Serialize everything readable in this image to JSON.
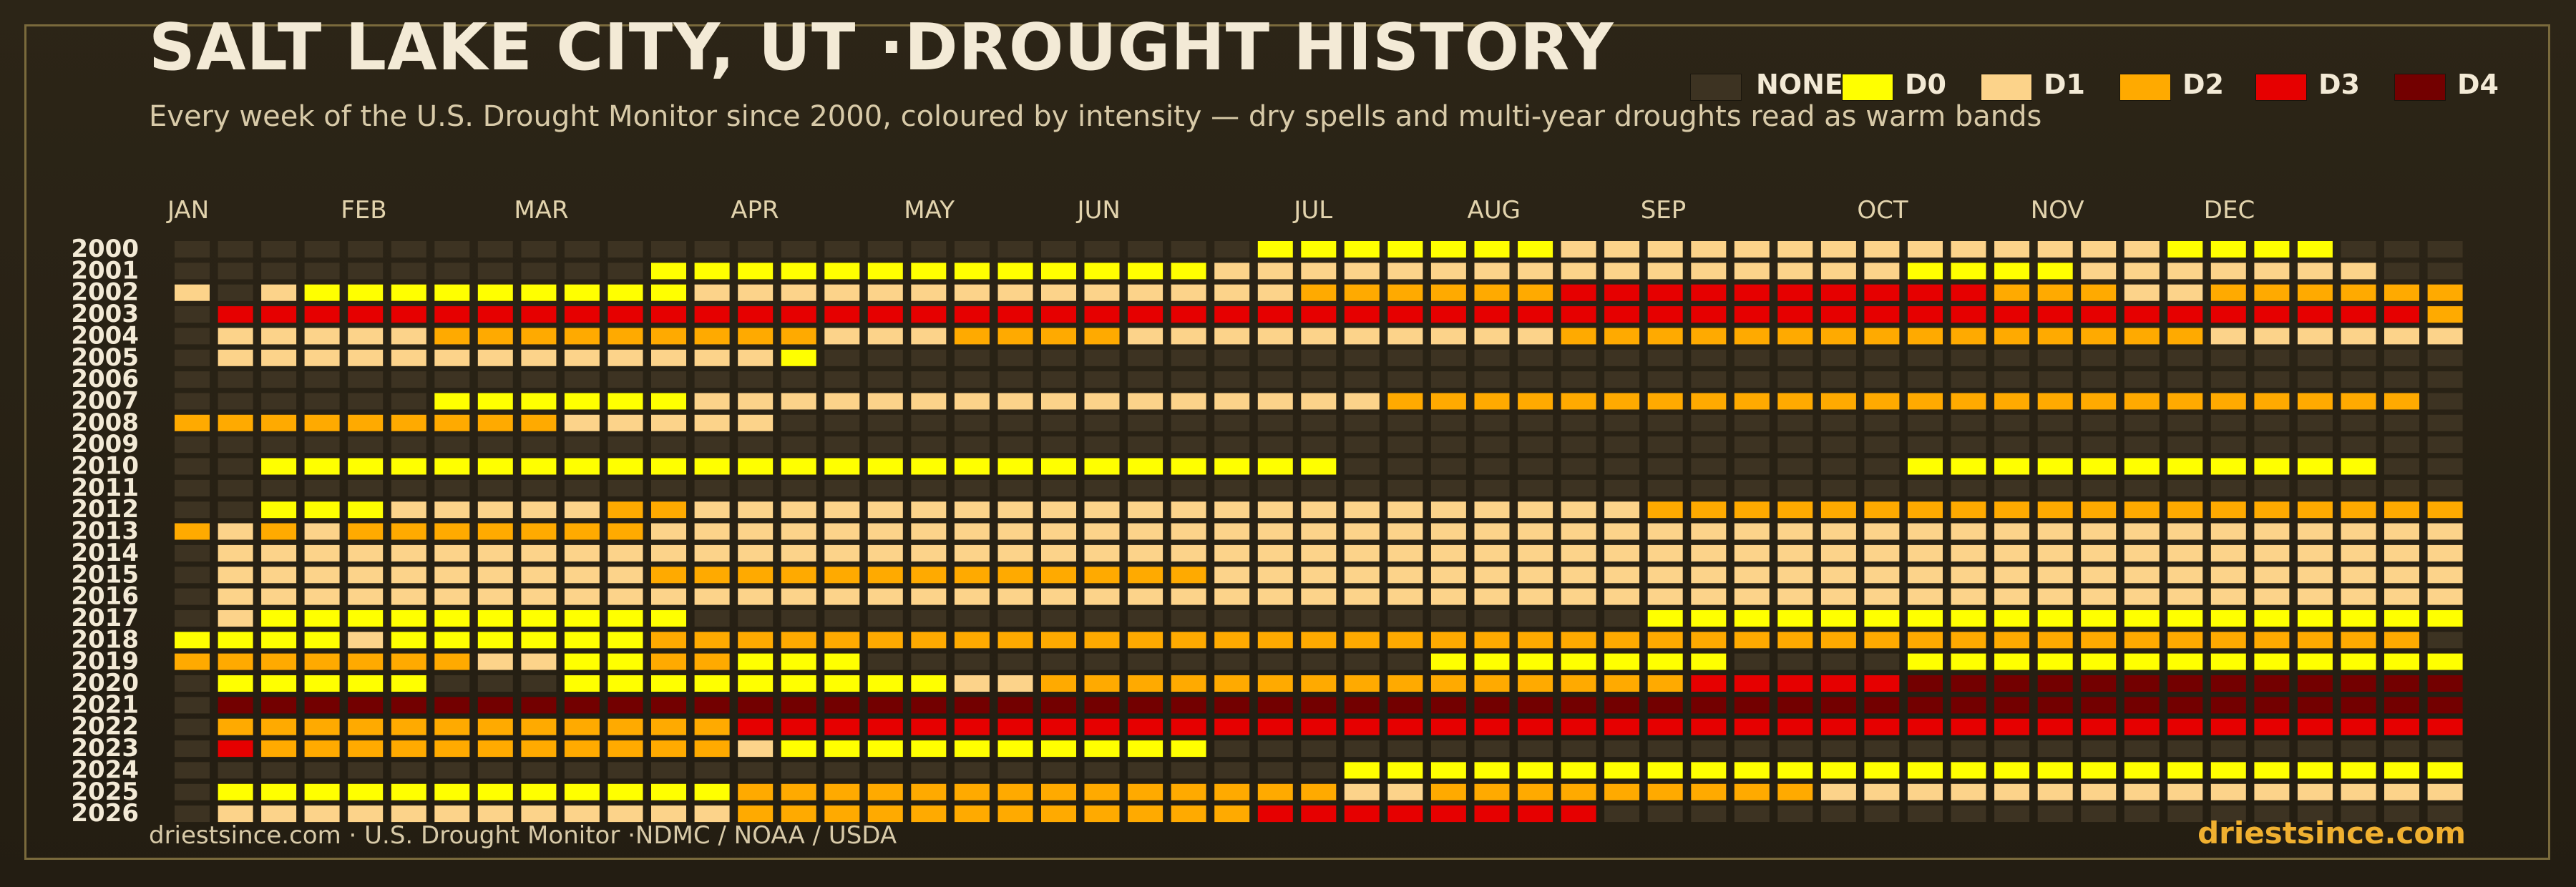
{
  "title": "SALT LAKE CITY, UT ·DROUGHT HISTORY",
  "subtitle": "Every week of the U.S. Drought Monitor since 2000, coloured by intensity — dry spells and multi-year droughts read as warm bands",
  "footer": {
    "source": "driestsince.com  · U.S. Drought Monitor ·NDMC / NOAA / USDA",
    "brand": "driestsince.com"
  },
  "legend": [
    {
      "label": "NONE",
      "color": "#3d3322"
    },
    {
      "label": "D0",
      "color": "#ffff00"
    },
    {
      "label": "D1",
      "color": "#fcd38a"
    },
    {
      "label": "D2",
      "color": "#ffaa00"
    },
    {
      "label": "D3",
      "color": "#e60000"
    },
    {
      "label": "D4",
      "color": "#730000"
    }
  ],
  "chart_data": {
    "type": "heatmap",
    "x_unit": "week of year",
    "months": [
      "JAN",
      "FEB",
      "MAR",
      "APR",
      "MAY",
      "JUN",
      "JUL",
      "AUG",
      "SEP",
      "OCT",
      "NOV",
      "DEC"
    ],
    "month_start_week": [
      1,
      5,
      9,
      14,
      18,
      22,
      27,
      31,
      35,
      40,
      44,
      48
    ],
    "weeks_per_year": 53,
    "category_order": [
      "NONE",
      "D0",
      "D1",
      "D2",
      "D3",
      "D4"
    ],
    "years": [
      {
        "year": "2000",
        "runs": [
          [
            "N",
            25
          ],
          [
            "0",
            7
          ],
          [
            "1",
            14
          ],
          [
            "0",
            4
          ],
          [
            "N",
            3
          ]
        ]
      },
      {
        "year": "2001",
        "runs": [
          [
            "N",
            11
          ],
          [
            "0",
            13
          ],
          [
            "1",
            16
          ],
          [
            "0",
            4
          ],
          [
            "1",
            7
          ],
          [
            "N",
            2
          ]
        ]
      },
      {
        "year": "2002",
        "runs": [
          [
            "1",
            1
          ],
          [
            "N",
            1
          ],
          [
            "1",
            1
          ],
          [
            "0",
            9
          ],
          [
            "1",
            14
          ],
          [
            "2",
            6
          ],
          [
            "3",
            10
          ],
          [
            "2",
            3
          ],
          [
            "1",
            2
          ],
          [
            "2",
            6
          ]
        ]
      },
      {
        "year": "2003",
        "runs": [
          [
            "N",
            1
          ],
          [
            "3",
            51
          ],
          [
            "2",
            1
          ]
        ]
      },
      {
        "year": "2004",
        "runs": [
          [
            "N",
            1
          ],
          [
            "1",
            5
          ],
          [
            "2",
            9
          ],
          [
            "1",
            3
          ],
          [
            "2",
            4
          ],
          [
            "1",
            10
          ],
          [
            "2",
            15
          ],
          [
            "1",
            6
          ]
        ]
      },
      {
        "year": "2005",
        "runs": [
          [
            "N",
            1
          ],
          [
            "1",
            13
          ],
          [
            "0",
            1
          ],
          [
            "N",
            38
          ]
        ]
      },
      {
        "year": "2006",
        "runs": [
          [
            "N",
            53
          ]
        ]
      },
      {
        "year": "2007",
        "runs": [
          [
            "N",
            6
          ],
          [
            "0",
            6
          ],
          [
            "1",
            16
          ],
          [
            "2",
            24
          ],
          [
            "N",
            1
          ]
        ]
      },
      {
        "year": "2008",
        "runs": [
          [
            "2",
            9
          ],
          [
            "1",
            5
          ],
          [
            "N",
            39
          ]
        ]
      },
      {
        "year": "2009",
        "runs": [
          [
            "N",
            53
          ]
        ]
      },
      {
        "year": "2010",
        "runs": [
          [
            "N",
            2
          ],
          [
            "0",
            25
          ],
          [
            "N",
            13
          ],
          [
            "0",
            11
          ],
          [
            "N",
            2
          ]
        ]
      },
      {
        "year": "2011",
        "runs": [
          [
            "N",
            53
          ]
        ]
      },
      {
        "year": "2012",
        "runs": [
          [
            "N",
            2
          ],
          [
            "0",
            3
          ],
          [
            "1",
            5
          ],
          [
            "2",
            2
          ],
          [
            "1",
            22
          ],
          [
            "2",
            19
          ]
        ]
      },
      {
        "year": "2013",
        "runs": [
          [
            "2",
            1
          ],
          [
            "1",
            1
          ],
          [
            "2",
            1
          ],
          [
            "1",
            1
          ],
          [
            "2",
            7
          ],
          [
            "1",
            42
          ]
        ]
      },
      {
        "year": "2014",
        "runs": [
          [
            "N",
            1
          ],
          [
            "1",
            52
          ]
        ]
      },
      {
        "year": "2015",
        "runs": [
          [
            "N",
            1
          ],
          [
            "1",
            10
          ],
          [
            "2",
            13
          ],
          [
            "1",
            29
          ]
        ]
      },
      {
        "year": "2016",
        "runs": [
          [
            "N",
            1
          ],
          [
            "1",
            52
          ]
        ]
      },
      {
        "year": "2017",
        "runs": [
          [
            "N",
            1
          ],
          [
            "1",
            1
          ],
          [
            "0",
            10
          ],
          [
            "N",
            22
          ],
          [
            "0",
            19
          ]
        ]
      },
      {
        "year": "2018",
        "runs": [
          [
            "0",
            4
          ],
          [
            "1",
            1
          ],
          [
            "0",
            6
          ],
          [
            "2",
            41
          ],
          [
            "N",
            1
          ]
        ]
      },
      {
        "year": "2019",
        "runs": [
          [
            "2",
            7
          ],
          [
            "1",
            2
          ],
          [
            "0",
            2
          ],
          [
            "2",
            2
          ],
          [
            "0",
            3
          ],
          [
            "N",
            13
          ],
          [
            "0",
            7
          ],
          [
            "N",
            4
          ],
          [
            "0",
            13
          ]
        ]
      },
      {
        "year": "2020",
        "runs": [
          [
            "N",
            1
          ],
          [
            "0",
            5
          ],
          [
            "N",
            3
          ],
          [
            "0",
            9
          ],
          [
            "1",
            2
          ],
          [
            "2",
            15
          ],
          [
            "3",
            5
          ],
          [
            "4",
            13
          ]
        ]
      },
      {
        "year": "2021",
        "runs": [
          [
            "N",
            1
          ],
          [
            "4",
            52
          ]
        ]
      },
      {
        "year": "2022",
        "runs": [
          [
            "N",
            1
          ],
          [
            "2",
            12
          ],
          [
            "3",
            40
          ]
        ]
      },
      {
        "year": "2023",
        "runs": [
          [
            "N",
            1
          ],
          [
            "3",
            1
          ],
          [
            "2",
            11
          ],
          [
            "1",
            1
          ],
          [
            "0",
            10
          ],
          [
            "N",
            29
          ]
        ]
      },
      {
        "year": "2024",
        "runs": [
          [
            "N",
            27
          ],
          [
            "0",
            26
          ]
        ]
      },
      {
        "year": "2025",
        "runs": [
          [
            "N",
            1
          ],
          [
            "0",
            12
          ],
          [
            "2",
            14
          ],
          [
            "1",
            2
          ],
          [
            "2",
            9
          ],
          [
            "1",
            15
          ]
        ]
      },
      {
        "year": "2026",
        "runs": [
          [
            "N",
            1
          ],
          [
            "1",
            12
          ],
          [
            "2",
            12
          ],
          [
            "3",
            8
          ],
          [
            "N",
            20
          ]
        ]
      }
    ]
  }
}
